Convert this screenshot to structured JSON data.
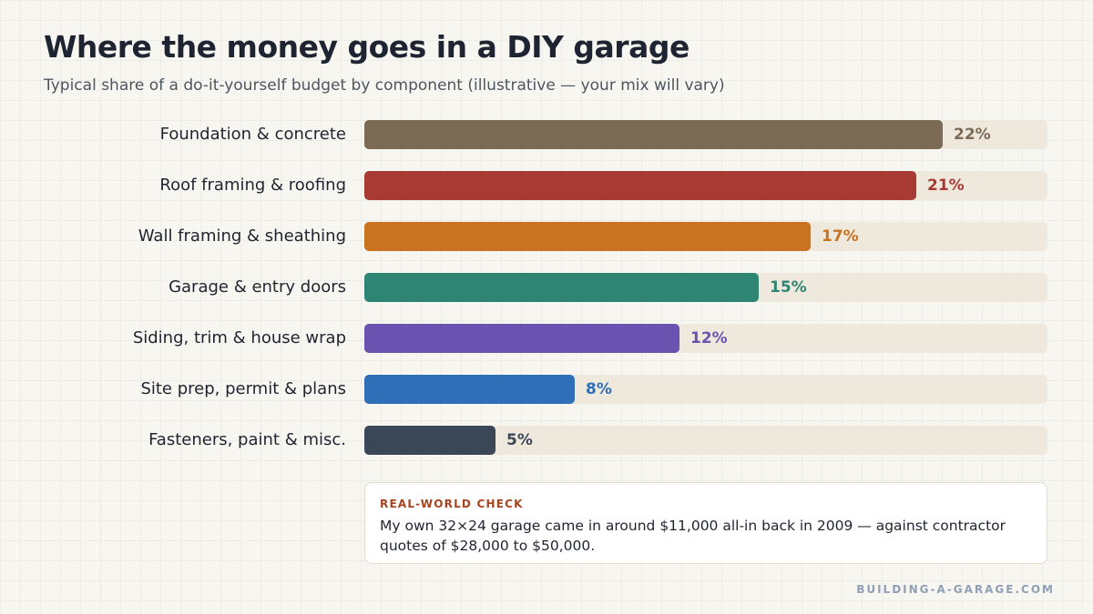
{
  "header": {
    "title": "Where the money goes in a DIY garage",
    "subtitle": "Typical share of a do-it-yourself budget by component (illustrative — your mix will vary)"
  },
  "chart_data": {
    "type": "bar",
    "orientation": "horizontal",
    "title": "Where the money goes in a DIY garage",
    "subtitle": "Typical share of a do-it-yourself budget by component (illustrative — your mix will vary)",
    "xlabel": "",
    "ylabel": "",
    "xlim": [
      0,
      26
    ],
    "unit": "%",
    "grid": false,
    "categories": [
      "Foundation & concrete",
      "Roof framing & roofing",
      "Wall framing & sheathing",
      "Garage & entry doors",
      "Siding, trim & house wrap",
      "Site prep, permit & plans",
      "Fasteners, paint & misc."
    ],
    "values": [
      22,
      21,
      17,
      15,
      12,
      8,
      5
    ],
    "value_labels": [
      "22%",
      "21%",
      "17%",
      "15%",
      "12%",
      "8%",
      "5%"
    ],
    "colors": [
      "#7a6a56",
      "#a83a34",
      "#c9721f",
      "#2e8573",
      "#6a52b0",
      "#2f6fb7",
      "#3b4757"
    ],
    "track_color": "#efe8dd"
  },
  "note": {
    "heading": "REAL-WORLD CHECK",
    "text": "My own 32×24 garage came in around $11,000 all-in back in 2009 — against contractor quotes of $28,000 to $50,000."
  },
  "footer": {
    "source": "BUILDING-A-GARAGE.COM"
  }
}
